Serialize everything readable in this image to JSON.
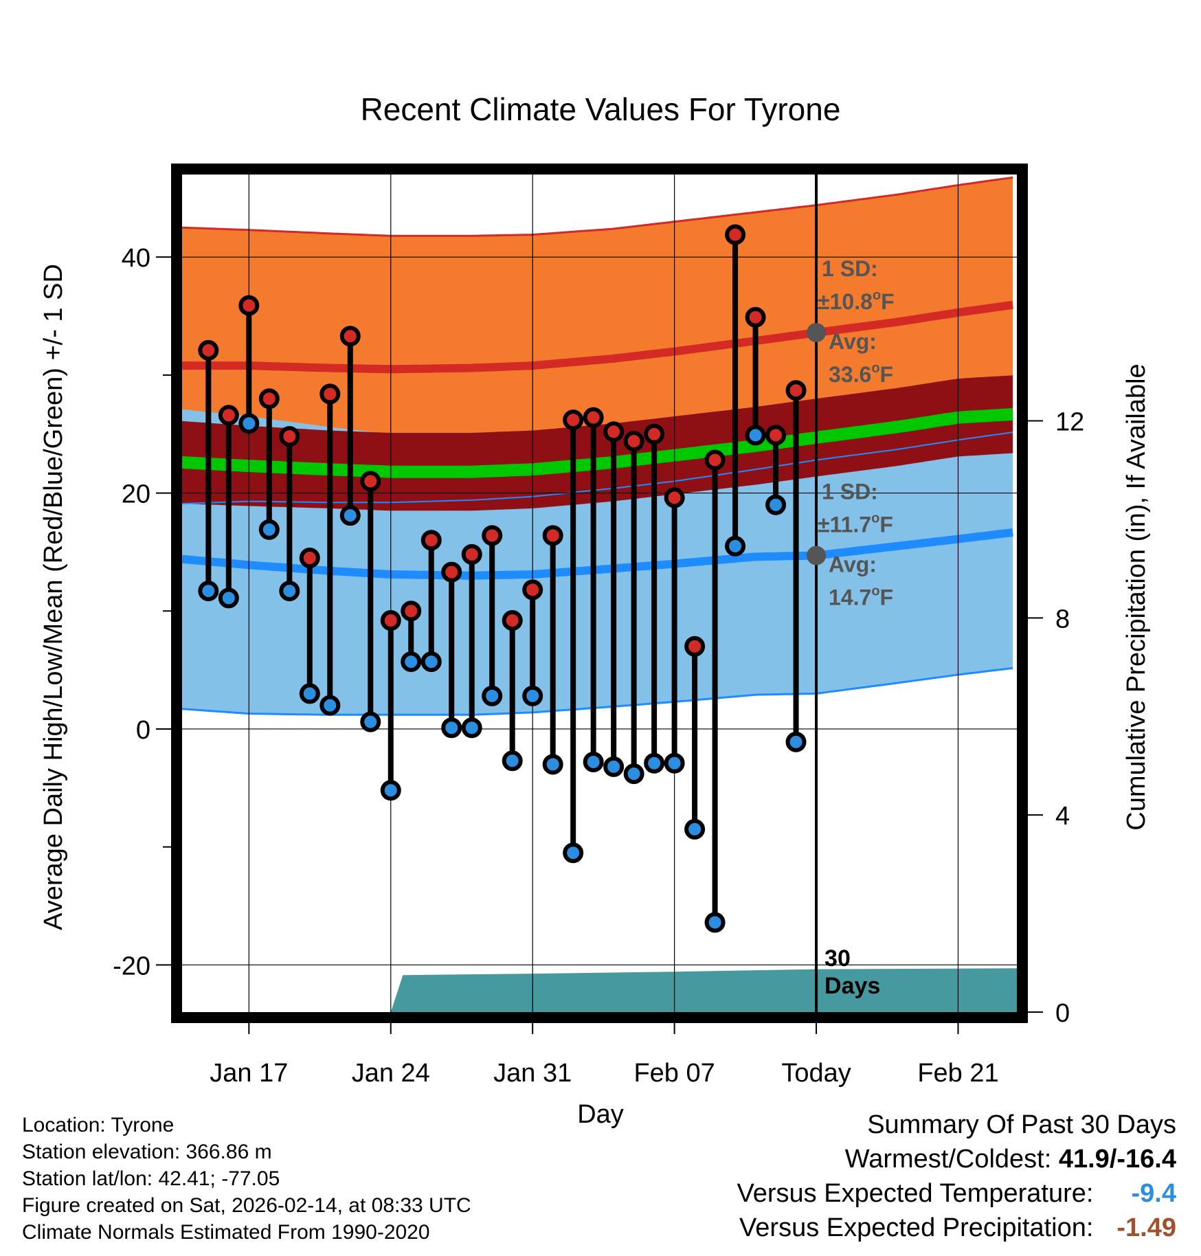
{
  "chart_data": {
    "type": "climate-range",
    "title": "Recent Climate Values For Tyrone",
    "xlabel": "Day",
    "ylabel_left": "Average Daily High/Low/Mean (Red/Blue/Green) +/- 1 SD",
    "ylabel_right": "Cumulative Precipitation (in), If Available",
    "x_domain": [
      13.7,
      54.9
    ],
    "y_left_range": [
      -24.0,
      47.0
    ],
    "y_left_ticks": [
      -20,
      0,
      20,
      40
    ],
    "y_left_minor_ticks": [
      -10,
      10,
      30
    ],
    "y_right_range": [
      0,
      17.0
    ],
    "y_right_ticks": [
      0,
      4,
      8,
      12
    ],
    "x_ticks": [
      {
        "day": 17,
        "label": "Jan 17"
      },
      {
        "day": 24,
        "label": "Jan 24"
      },
      {
        "day": 31,
        "label": "Jan 31"
      },
      {
        "day": 38,
        "label": "Feb 07"
      },
      {
        "day": 45,
        "label": "Today"
      },
      {
        "day": 52,
        "label": "Feb 21"
      }
    ],
    "today_day": 45,
    "today_label": [
      "30",
      "Days"
    ],
    "colors": {
      "high_band": "#f47b2e",
      "high_line": "#d42a25",
      "mean_band": "#8e1014",
      "mean_line": "#00c800",
      "low_band": "#84c1e8",
      "low_line": "#1e8cff",
      "precip": "#46999e",
      "high_dot": "#d42a25",
      "low_dot": "#2b8ee0",
      "annot": "#555555",
      "avg_marker": "#555555"
    },
    "normals": {
      "days": [
        13.7,
        17,
        21,
        24,
        28,
        31,
        35,
        38,
        42,
        45,
        49,
        52,
        54.9
      ],
      "high": [
        30.8,
        30.8,
        30.6,
        30.5,
        30.6,
        30.8,
        31.4,
        32.0,
        32.9,
        33.6,
        34.5,
        35.3,
        36.0
      ],
      "high_sd": [
        11.7,
        11.5,
        11.4,
        11.3,
        11.2,
        11.1,
        11.0,
        11.0,
        10.9,
        10.8,
        10.8,
        10.8,
        10.8
      ],
      "mean": [
        22.6,
        22.3,
        22.0,
        21.8,
        21.8,
        22.0,
        22.6,
        23.2,
        24.0,
        24.7,
        25.6,
        26.4,
        26.7
      ],
      "mean_sd": [
        3.5,
        3.4,
        3.3,
        3.3,
        3.3,
        3.3,
        3.3,
        3.3,
        3.3,
        3.3,
        3.3,
        3.3,
        3.3
      ],
      "low": [
        14.4,
        13.9,
        13.4,
        13.1,
        13.0,
        13.1,
        13.6,
        14.0,
        14.6,
        14.7,
        15.5,
        16.1,
        16.7
      ],
      "low_sd": [
        12.7,
        12.6,
        12.2,
        11.9,
        11.8,
        11.7,
        11.7,
        11.7,
        11.7,
        11.7,
        11.6,
        11.5,
        11.5
      ]
    },
    "annotations": {
      "high": {
        "sd_label": "1 SD:",
        "sd_value": "±10.8",
        "avg_label": "Avg:",
        "avg_value": "33.6",
        "unit": "F"
      },
      "low": {
        "sd_label": "1 SD:",
        "sd_value": "±11.7",
        "avg_label": "Avg:",
        "avg_value": "14.7",
        "unit": "F"
      }
    },
    "daily": {
      "days": [
        15,
        16,
        17,
        18,
        19,
        20,
        21,
        22,
        23,
        24,
        25,
        26,
        27,
        28,
        29,
        30,
        31,
        32,
        33,
        34,
        35,
        36,
        37,
        38,
        39,
        40,
        41,
        42,
        43,
        44
      ],
      "highs": [
        32.1,
        26.6,
        35.9,
        28.0,
        24.8,
        14.5,
        28.4,
        33.3,
        21.0,
        9.2,
        10.0,
        16.0,
        13.3,
        14.8,
        16.4,
        9.2,
        11.8,
        16.4,
        26.2,
        26.4,
        25.2,
        24.4,
        25.0,
        19.6,
        7.0,
        22.8,
        41.9,
        34.9,
        24.9,
        28.7
      ],
      "lows": [
        11.7,
        11.1,
        25.9,
        16.9,
        11.7,
        3.0,
        2.0,
        18.1,
        0.6,
        -5.2,
        5.7,
        5.7,
        0.1,
        0.1,
        2.8,
        -2.7,
        2.8,
        -3.0,
        -10.5,
        -2.8,
        -3.2,
        -3.8,
        -2.9,
        -2.9,
        -8.5,
        -16.4,
        15.5,
        24.9,
        19.0,
        -1.1
      ]
    },
    "precip": {
      "days": [
        24,
        24.6,
        31,
        38,
        45,
        54.9
      ],
      "values": [
        0.0,
        0.75,
        0.78,
        0.82,
        0.87,
        0.89
      ]
    }
  },
  "info": {
    "location": "Location: Tyrone",
    "elevation": "Station elevation: 366.86 m",
    "latlon": "Station lat/lon: 42.41; -77.05",
    "created": "Figure created on Sat, 2026-02-14, at 08:33 UTC",
    "normals": "Climate Normals Estimated From 1990-2020"
  },
  "summary": {
    "title": "Summary Of Past 30 Days",
    "warm_cold_label": "Warmest/Coldest:",
    "warm_cold_value": "41.9/-16.4",
    "temp_label": "Versus Expected Temperature:",
    "temp_value": "-9.4",
    "precip_label": "Versus Expected Precipitation:",
    "precip_value": "-1.49"
  }
}
